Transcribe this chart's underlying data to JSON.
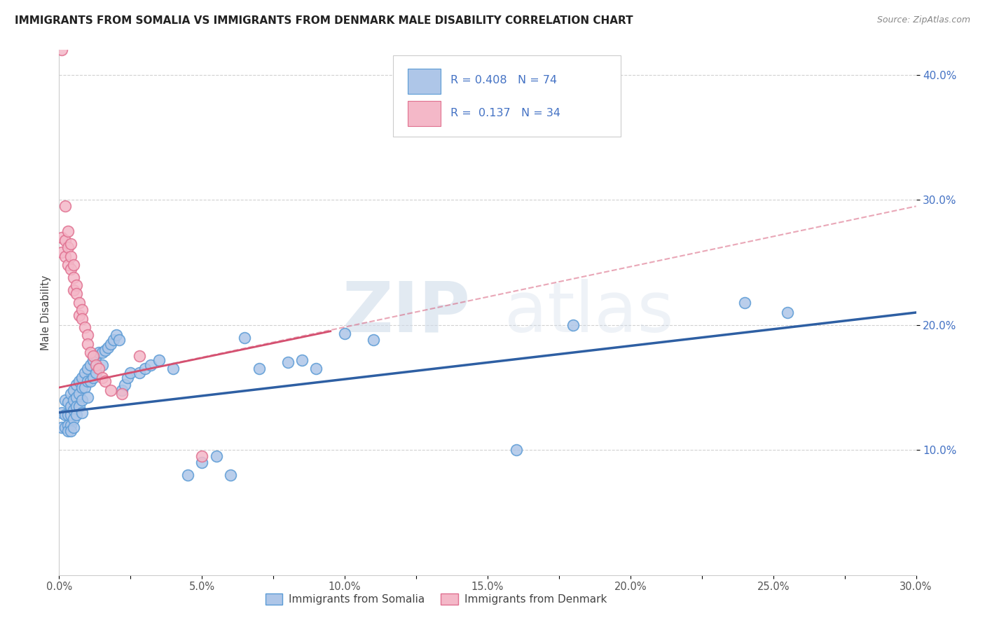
{
  "title": "IMMIGRANTS FROM SOMALIA VS IMMIGRANTS FROM DENMARK MALE DISABILITY CORRELATION CHART",
  "source": "Source: ZipAtlas.com",
  "ylabel": "Male Disability",
  "xlim": [
    0.0,
    0.3
  ],
  "ylim": [
    0.0,
    0.42
  ],
  "xtick_labels": [
    "0.0%",
    "",
    "5.0%",
    "",
    "10.0%",
    "",
    "15.0%",
    "",
    "20.0%",
    "",
    "25.0%",
    "",
    "30.0%"
  ],
  "xtick_vals": [
    0.0,
    0.025,
    0.05,
    0.075,
    0.1,
    0.125,
    0.15,
    0.175,
    0.2,
    0.225,
    0.25,
    0.275,
    0.3
  ],
  "ytick_labels": [
    "10.0%",
    "20.0%",
    "30.0%",
    "40.0%"
  ],
  "ytick_vals": [
    0.1,
    0.2,
    0.3,
    0.4
  ],
  "somalia_color": "#aec6e8",
  "somalia_edge": "#5b9bd5",
  "denmark_color": "#f4b8c8",
  "denmark_edge": "#e07090",
  "somalia_line_color": "#2e5fa3",
  "denmark_line_color": "#d45070",
  "R_somalia": 0.408,
  "N_somalia": 74,
  "R_denmark": 0.137,
  "N_denmark": 34,
  "watermark_zip": "ZIP",
  "watermark_atlas": "atlas",
  "legend_somalia": "Immigrants from Somalia",
  "legend_denmark": "Immigrants from Denmark",
  "somalia_x": [
    0.001,
    0.001,
    0.002,
    0.002,
    0.002,
    0.003,
    0.003,
    0.003,
    0.003,
    0.004,
    0.004,
    0.004,
    0.004,
    0.004,
    0.005,
    0.005,
    0.005,
    0.005,
    0.005,
    0.006,
    0.006,
    0.006,
    0.006,
    0.007,
    0.007,
    0.007,
    0.008,
    0.008,
    0.008,
    0.008,
    0.009,
    0.009,
    0.01,
    0.01,
    0.01,
    0.011,
    0.011,
    0.012,
    0.012,
    0.013,
    0.013,
    0.014,
    0.015,
    0.015,
    0.016,
    0.017,
    0.018,
    0.019,
    0.02,
    0.021,
    0.022,
    0.023,
    0.024,
    0.025,
    0.028,
    0.03,
    0.032,
    0.035,
    0.04,
    0.045,
    0.05,
    0.055,
    0.06,
    0.065,
    0.07,
    0.08,
    0.085,
    0.09,
    0.1,
    0.11,
    0.16,
    0.18,
    0.24,
    0.255
  ],
  "somalia_y": [
    0.13,
    0.118,
    0.14,
    0.128,
    0.118,
    0.138,
    0.128,
    0.12,
    0.115,
    0.145,
    0.135,
    0.128,
    0.12,
    0.115,
    0.148,
    0.14,
    0.132,
    0.125,
    0.118,
    0.152,
    0.142,
    0.135,
    0.128,
    0.155,
    0.145,
    0.135,
    0.158,
    0.15,
    0.14,
    0.13,
    0.162,
    0.15,
    0.165,
    0.155,
    0.142,
    0.168,
    0.155,
    0.172,
    0.158,
    0.175,
    0.162,
    0.178,
    0.178,
    0.168,
    0.18,
    0.182,
    0.185,
    0.188,
    0.192,
    0.188,
    0.148,
    0.152,
    0.158,
    0.162,
    0.162,
    0.165,
    0.168,
    0.172,
    0.165,
    0.08,
    0.09,
    0.095,
    0.08,
    0.19,
    0.165,
    0.17,
    0.172,
    0.165,
    0.193,
    0.188,
    0.1,
    0.2,
    0.218,
    0.21
  ],
  "denmark_x": [
    0.001,
    0.001,
    0.001,
    0.002,
    0.002,
    0.002,
    0.003,
    0.003,
    0.003,
    0.004,
    0.004,
    0.004,
    0.005,
    0.005,
    0.005,
    0.006,
    0.006,
    0.007,
    0.007,
    0.008,
    0.008,
    0.009,
    0.01,
    0.01,
    0.011,
    0.012,
    0.013,
    0.014,
    0.015,
    0.016,
    0.018,
    0.022,
    0.028,
    0.05
  ],
  "denmark_y": [
    0.42,
    0.27,
    0.258,
    0.295,
    0.268,
    0.255,
    0.275,
    0.262,
    0.248,
    0.265,
    0.255,
    0.245,
    0.248,
    0.238,
    0.228,
    0.232,
    0.225,
    0.218,
    0.208,
    0.212,
    0.205,
    0.198,
    0.192,
    0.185,
    0.178,
    0.175,
    0.168,
    0.165,
    0.158,
    0.155,
    0.148,
    0.145,
    0.175,
    0.095
  ],
  "som_line_x0": 0.0,
  "som_line_x1": 0.3,
  "som_line_y0": 0.13,
  "som_line_y1": 0.21,
  "den_line_solid_x0": 0.0,
  "den_line_solid_x1": 0.095,
  "den_line_solid_y0": 0.15,
  "den_line_solid_y1": 0.195,
  "den_line_dash_x0": 0.0,
  "den_line_dash_x1": 0.3,
  "den_line_dash_y0": 0.15,
  "den_line_dash_y1": 0.295
}
